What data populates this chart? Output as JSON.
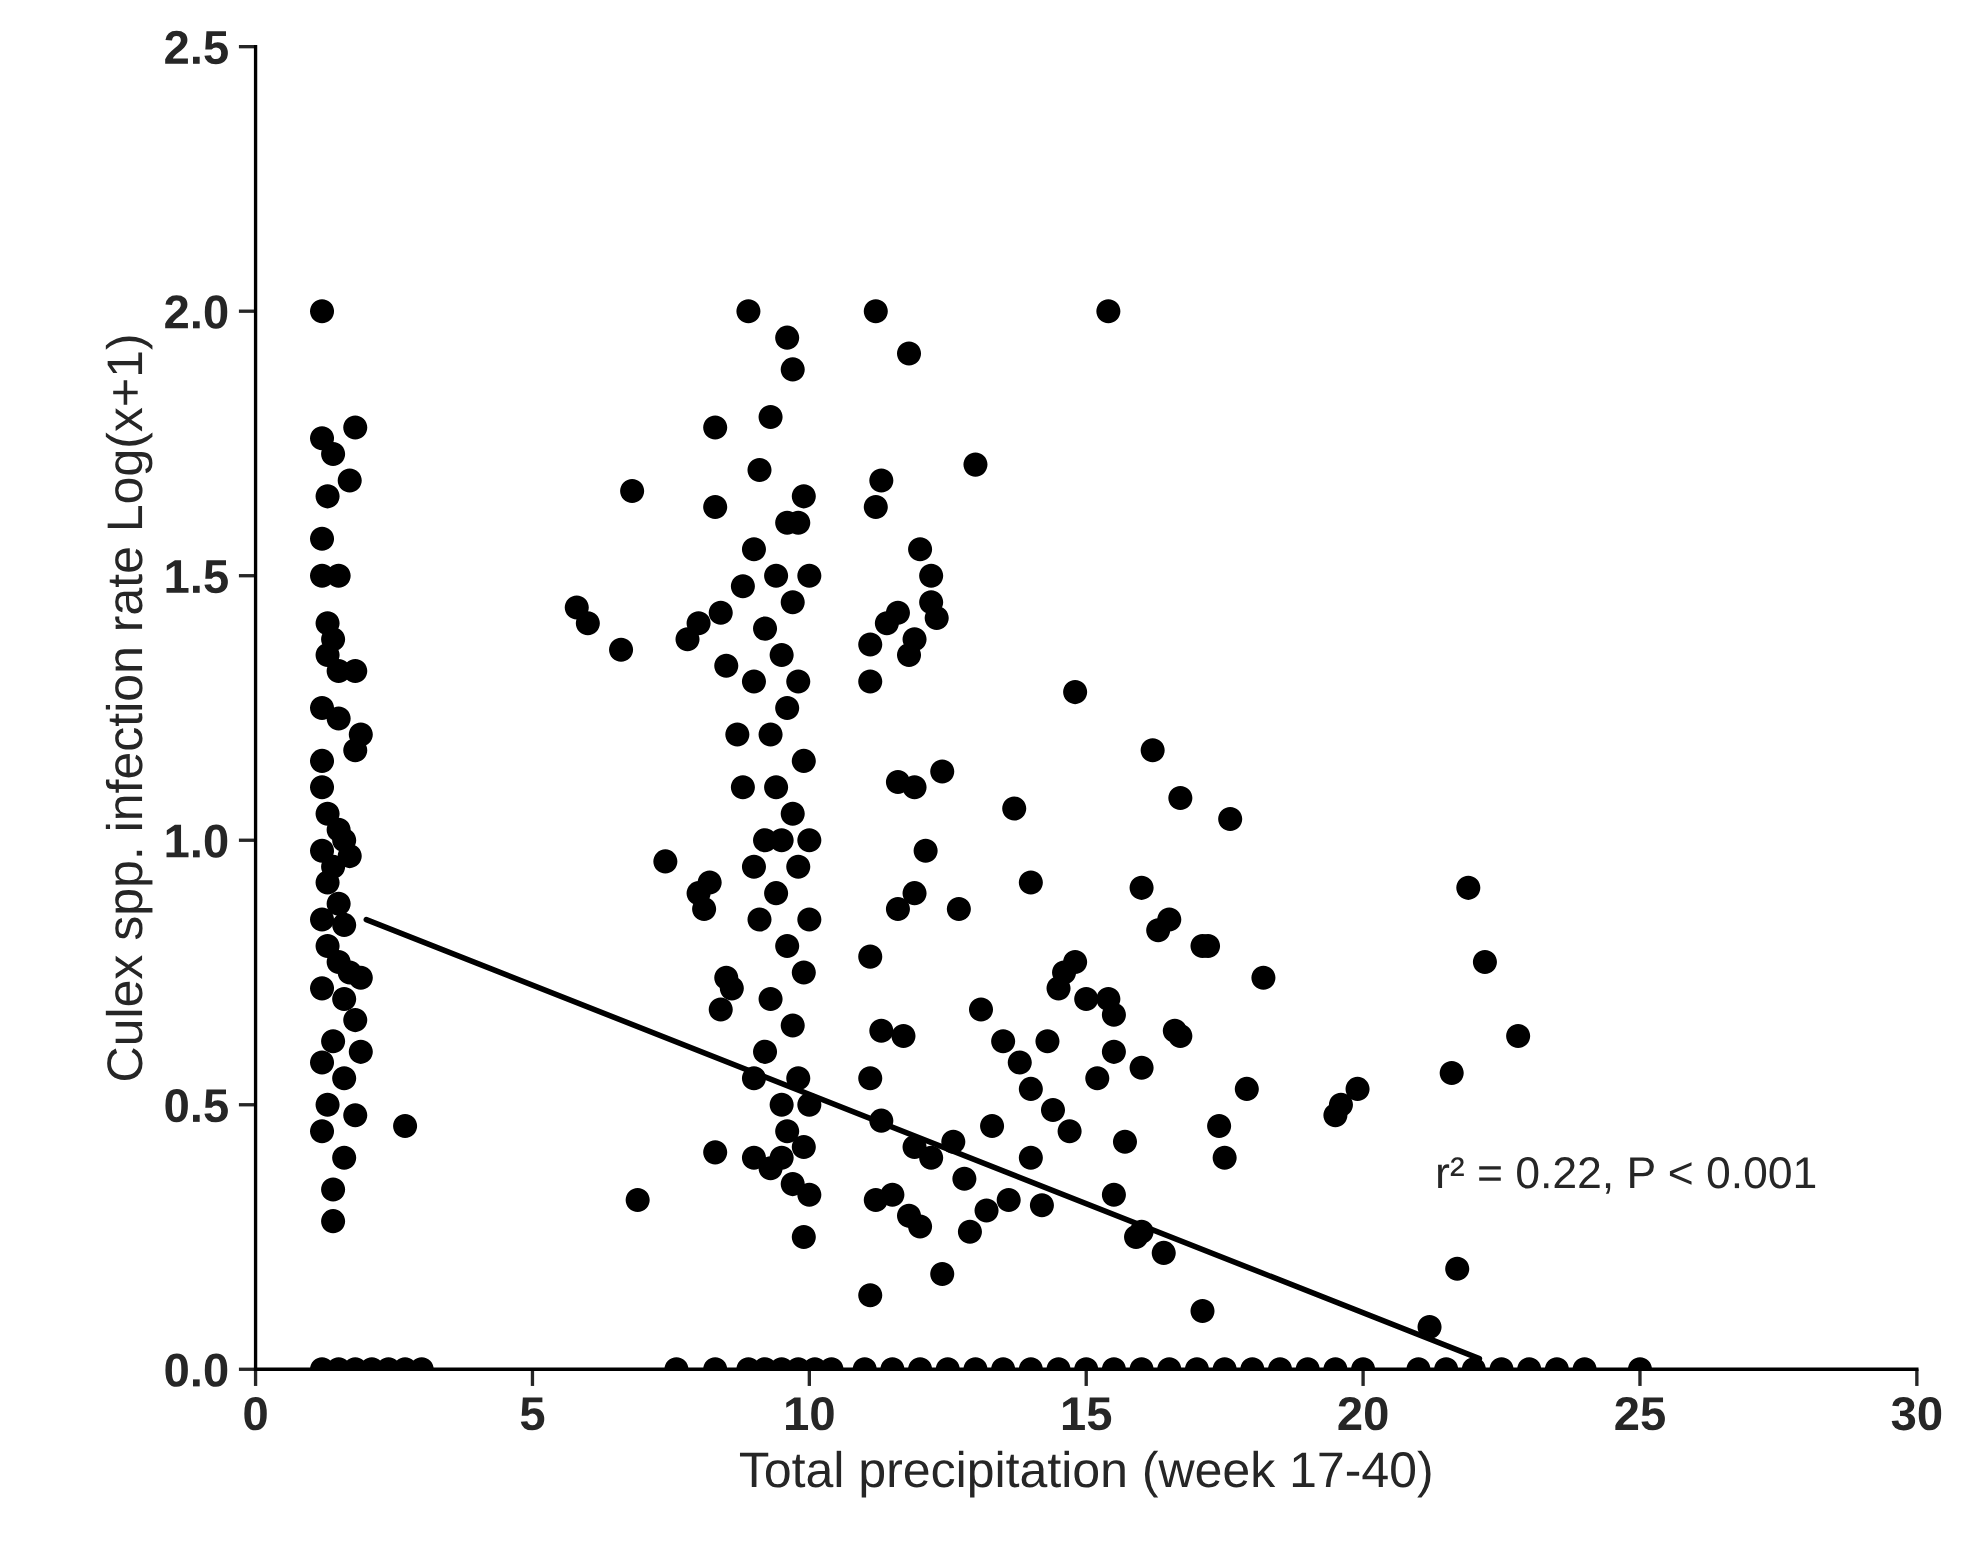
{
  "chart_data": {
    "type": "scatter",
    "xlabel": "Total precipitation (week 17-40)",
    "ylabel": "Culex spp. infection rate Log(x+1)",
    "xlim": [
      0,
      30
    ],
    "xticks": [
      0,
      5,
      10,
      15,
      20,
      25,
      30
    ],
    "ylim": [
      0,
      2.5
    ],
    "yticks": [
      {
        "value": 0,
        "label": "0.0"
      },
      {
        "value": 0.5,
        "label": "0.5"
      },
      {
        "value": 1.0,
        "label": "1.0"
      },
      {
        "value": 1.5,
        "label": "1.5"
      },
      {
        "value": 2.0,
        "label": "2.0"
      },
      {
        "value": 2.5,
        "label": "2.5"
      }
    ],
    "grid": false,
    "legend": false,
    "annotations": [
      "r² = 0.22, P < 0.001"
    ],
    "series": [
      {
        "marker": "circle",
        "color": "#000000",
        "x": [
          1.2,
          1.2,
          1.4,
          1.8,
          1.3,
          1.2,
          1.7,
          1.2,
          1.5,
          1.3,
          1.4,
          1.3,
          1.5,
          1.2,
          1.5,
          1.8,
          1.9,
          1.8,
          1.2,
          1.2,
          1.3,
          1.5,
          1.6,
          1.2,
          1.4,
          1.7,
          1.3,
          1.5,
          1.2,
          1.6,
          1.3,
          1.5,
          1.7,
          1.2,
          1.6,
          1.8,
          1.4,
          1.2,
          1.6,
          1.9,
          1.3,
          1.8,
          2.7,
          1.2,
          1.6,
          1.4,
          1.4,
          1.9,
          1.2,
          1.5,
          1.8,
          2.1,
          2.4,
          2.7,
          3.0,
          5.8,
          6.0,
          6.6,
          6.8,
          7.4,
          6.9,
          7.8,
          8.0,
          8.0,
          8.1,
          8.2,
          7.6,
          8.3,
          8.3,
          8.4,
          8.5,
          8.4,
          8.3,
          8.5,
          8.6,
          8.7,
          8.8,
          8.8,
          8.9,
          9.0,
          9.0,
          9.0,
          9.0,
          9.0,
          9.1,
          9.1,
          9.2,
          9.2,
          9.2,
          9.3,
          9.3,
          9.3,
          9.3,
          9.4,
          9.4,
          9.4,
          9.5,
          9.5,
          9.5,
          9.5,
          9.6,
          9.6,
          9.6,
          9.6,
          9.6,
          9.7,
          9.7,
          9.7,
          9.7,
          9.7,
          9.8,
          9.8,
          9.8,
          9.8,
          9.9,
          9.9,
          9.9,
          9.9,
          9.9,
          10.0,
          10.0,
          10.0,
          10.0,
          10.0,
          8.3,
          8.9,
          9.2,
          9.5,
          9.8,
          10.1,
          10.4,
          11.2,
          11.8,
          13.0,
          11.3,
          11.2,
          11.4,
          11.6,
          11.9,
          11.8,
          12.2,
          12.3,
          12.2,
          12.0,
          11.1,
          11.1,
          11.6,
          11.9,
          12.4,
          11.1,
          11.3,
          11.6,
          11.9,
          12.1,
          12.7,
          11.1,
          11.3,
          11.5,
          11.8,
          11.9,
          12.2,
          11.2,
          11.7,
          11.1,
          12.4,
          12.0,
          12.6,
          12.9,
          13.1,
          12.8,
          15.4,
          14.8,
          16.2,
          16.7,
          17.6,
          13.7,
          14.0,
          16.0,
          16.5,
          16.3,
          17.1,
          17.2,
          18.2,
          14.6,
          14.8,
          15.0,
          15.4,
          15.5,
          14.3,
          14.5,
          13.5,
          13.8,
          14.0,
          14.4,
          14.7,
          15.2,
          15.5,
          15.7,
          16.0,
          17.4,
          17.5,
          17.9,
          16.6,
          16.7,
          13.3,
          13.6,
          14.2,
          13.2,
          15.5,
          16.0,
          16.4,
          17.1,
          15.9,
          14.0,
          19.5,
          19.6,
          19.9,
          21.6,
          21.9,
          22.2,
          22.8,
          21.7,
          21.2,
          11.0,
          11.5,
          12.0,
          12.5,
          13.0,
          13.5,
          14.0,
          14.5,
          15.0,
          15.5,
          16.0,
          16.5,
          17.0,
          17.5,
          18.0,
          18.5,
          19.0,
          19.5,
          20.0,
          21.0,
          21.5,
          22.0,
          22.5,
          23.0,
          23.5,
          24.0,
          25.0
        ],
        "values": [
          2.0,
          1.76,
          1.73,
          1.78,
          1.65,
          1.57,
          1.68,
          1.5,
          1.5,
          1.41,
          1.38,
          1.35,
          1.32,
          1.25,
          1.23,
          1.32,
          1.2,
          1.17,
          1.15,
          1.1,
          1.05,
          1.02,
          1.0,
          0.98,
          0.95,
          0.97,
          0.92,
          0.88,
          0.85,
          0.84,
          0.8,
          0.77,
          0.75,
          0.72,
          0.7,
          0.66,
          0.62,
          0.58,
          0.55,
          0.6,
          0.5,
          0.48,
          0.46,
          0.45,
          0.4,
          0.34,
          0.28,
          0.74,
          0,
          0,
          0,
          0,
          0,
          0,
          0,
          1.44,
          1.41,
          1.36,
          1.66,
          0.96,
          0.32,
          1.38,
          1.41,
          0.9,
          0.87,
          0.92,
          0,
          1.78,
          1.63,
          1.43,
          1.33,
          0.68,
          0.41,
          0.74,
          0.72,
          1.2,
          1.48,
          1.1,
          2.0,
          1.55,
          1.3,
          0.95,
          0.55,
          0.4,
          1.7,
          0.85,
          1.4,
          1.0,
          0.6,
          1.8,
          1.2,
          0.7,
          0.38,
          1.5,
          1.1,
          0.9,
          1.35,
          1.0,
          0.5,
          0.4,
          1.95,
          1.6,
          1.25,
          0.8,
          0.45,
          1.89,
          1.45,
          1.05,
          0.65,
          0.35,
          1.6,
          1.3,
          0.95,
          0.55,
          1.65,
          1.15,
          0.75,
          0.42,
          0.25,
          1.5,
          1.0,
          0.85,
          0.5,
          0.33,
          0,
          0,
          0,
          0,
          0,
          0,
          0,
          2.0,
          1.92,
          1.71,
          1.68,
          1.63,
          1.41,
          1.43,
          1.38,
          1.35,
          1.45,
          1.42,
          1.5,
          1.55,
          1.37,
          1.3,
          1.11,
          1.1,
          1.13,
          0.78,
          0.64,
          0.87,
          0.9,
          0.98,
          0.87,
          0.55,
          0.47,
          0.33,
          0.29,
          0.42,
          0.4,
          0.32,
          0.63,
          0.14,
          0.18,
          0.27,
          0.43,
          0.26,
          0.68,
          0.36,
          2.0,
          1.28,
          1.17,
          1.08,
          1.04,
          1.06,
          0.92,
          0.91,
          0.85,
          0.83,
          0.8,
          0.8,
          0.74,
          0.75,
          0.77,
          0.7,
          0.7,
          0.67,
          0.62,
          0.72,
          0.62,
          0.58,
          0.53,
          0.49,
          0.45,
          0.55,
          0.6,
          0.43,
          0.57,
          0.46,
          0.4,
          0.53,
          0.64,
          0.63,
          0.46,
          0.32,
          0.31,
          0.3,
          0.33,
          0.26,
          0.22,
          0.11,
          0.25,
          0.4,
          0.48,
          0.5,
          0.53,
          0.56,
          0.91,
          0.77,
          0.63,
          0.19,
          0.08,
          0,
          0,
          0,
          0,
          0,
          0,
          0,
          0,
          0,
          0,
          0,
          0,
          0,
          0,
          0,
          0,
          0,
          0,
          0,
          0,
          0,
          0,
          0,
          0,
          0,
          0,
          0
        ]
      },
      {
        "type": "line",
        "color": "#000000",
        "x": [
          2.0,
          22.1
        ],
        "values": [
          0.85,
          0.02
        ]
      }
    ]
  }
}
